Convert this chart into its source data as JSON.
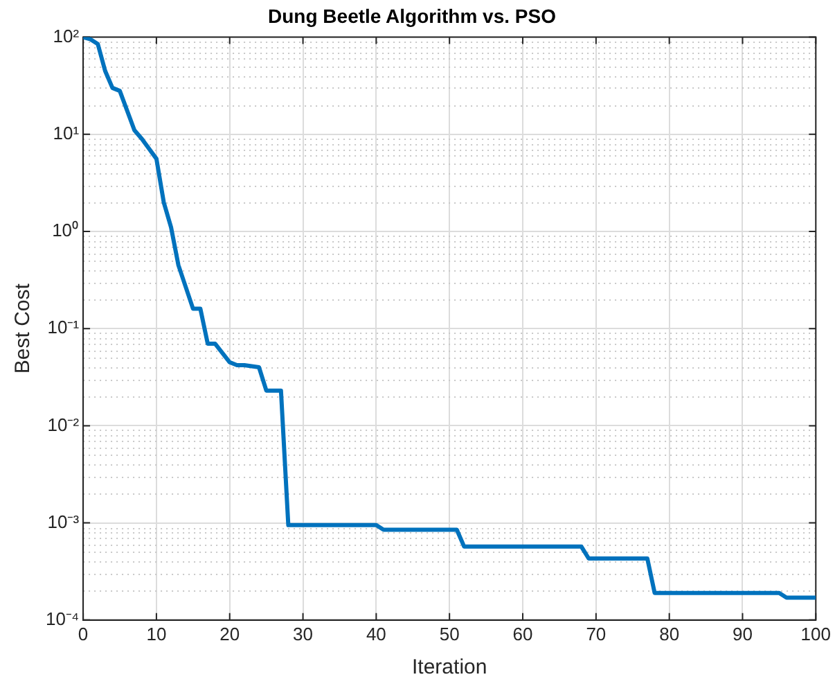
{
  "chart_data": {
    "type": "line",
    "title": "Dung Beetle Algorithm vs. PSO",
    "xlabel": "Iteration",
    "ylabel": "Best Cost",
    "log": "y",
    "grid": true,
    "legend": false,
    "marker": "none",
    "line_style": "solid",
    "xlim": [
      0,
      100
    ],
    "xticks": [
      0,
      10,
      20,
      30,
      40,
      50,
      60,
      70,
      80,
      90,
      100
    ],
    "ylim": [
      0.0001,
      100
    ],
    "yticks": [
      {
        "value": 0.0001,
        "label": "10⁻⁴"
      },
      {
        "value": 0.001,
        "label": "10⁻³"
      },
      {
        "value": 0.01,
        "label": "10⁻²"
      },
      {
        "value": 0.1,
        "label": "10⁻¹"
      },
      {
        "value": 1,
        "label": "10⁰"
      },
      {
        "value": 10,
        "label": "10¹"
      },
      {
        "value": 100,
        "label": "10²"
      }
    ],
    "series": [
      {
        "color": "#0072bd",
        "x": [
          0,
          1,
          2,
          3,
          4,
          5,
          7,
          8,
          10,
          11,
          12,
          13,
          15,
          16,
          17,
          18,
          20,
          21,
          22,
          24,
          25,
          27,
          28,
          40,
          41,
          51,
          52,
          68,
          69,
          77,
          78,
          95,
          96,
          100
        ],
        "values": [
          100,
          95,
          85,
          45,
          30,
          28,
          11,
          9,
          5.6,
          2,
          1.1,
          0.45,
          0.16,
          0.16,
          0.07,
          0.07,
          0.045,
          0.042,
          0.042,
          0.04,
          0.023,
          0.023,
          0.00095,
          0.00095,
          0.00085,
          0.00085,
          0.00057,
          0.00057,
          0.00043,
          0.00043,
          0.00019,
          0.00019,
          0.00017,
          0.00017
        ]
      }
    ]
  }
}
